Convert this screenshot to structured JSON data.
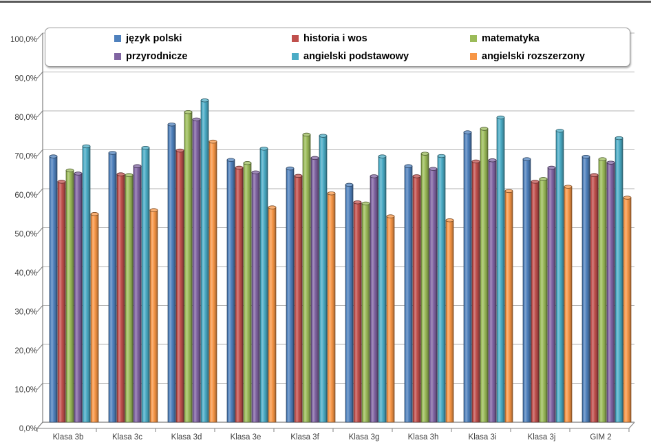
{
  "chart_data": {
    "type": "bar",
    "title": "",
    "xlabel": "",
    "ylabel": "",
    "ylim": [
      0,
      100
    ],
    "ytick_step": 10,
    "y_tick_labels": [
      "100,0%",
      "90,0%",
      "80,0%",
      "70,0%",
      "60,0%",
      "50,0%",
      "40,0%",
      "30,0%",
      "20,0%",
      "10,0%",
      "0,0%"
    ],
    "grid": true,
    "legend_position": "top",
    "value_format": "percent-comma-decimal",
    "categories": [
      "Klasa 3b",
      "Klasa 3c",
      "Klasa 3d",
      "Klasa 3e",
      "Klasa 3f",
      "Klasa 3g",
      "Klasa 3h",
      "Klasa 3i",
      "Klasa 3j",
      "GIM 2"
    ],
    "series": [
      {
        "name": "język polski",
        "color": "#4F81BD",
        "values": [
          68.3,
          69.2,
          76.5,
          67.4,
          65.2,
          61.0,
          65.8,
          74.5,
          67.6,
          68.2
        ]
      },
      {
        "name": "historia i wos",
        "color": "#C0504D",
        "values": [
          61.8,
          63.7,
          69.8,
          65.4,
          63.3,
          56.5,
          63.2,
          67.0,
          61.8,
          63.5
        ]
      },
      {
        "name": "matematyka",
        "color": "#9BBB59",
        "values": [
          64.7,
          63.5,
          79.7,
          66.6,
          73.9,
          56.2,
          69.0,
          75.4,
          62.5,
          67.6
        ]
      },
      {
        "name": "przyrodnicze",
        "color": "#8064A2",
        "values": [
          63.9,
          65.8,
          77.8,
          64.2,
          67.9,
          63.2,
          65.1,
          67.3,
          65.4,
          66.7
        ]
      },
      {
        "name": "angielski podstawowy",
        "color": "#4BACC6",
        "values": [
          70.9,
          70.5,
          82.7,
          70.3,
          73.6,
          68.3,
          68.4,
          78.3,
          74.9,
          73.0
        ]
      },
      {
        "name": "angielski rozszerzony",
        "color": "#F79646",
        "values": [
          53.5,
          54.5,
          72.1,
          55.2,
          58.8,
          52.9,
          51.9,
          59.4,
          60.5,
          57.7
        ]
      }
    ],
    "style": {
      "gridline_color": "#b3b3b3",
      "axis_color": "#7f7f7f",
      "background": "#ffffff",
      "effect": "3d-cylinder-bevel"
    }
  }
}
